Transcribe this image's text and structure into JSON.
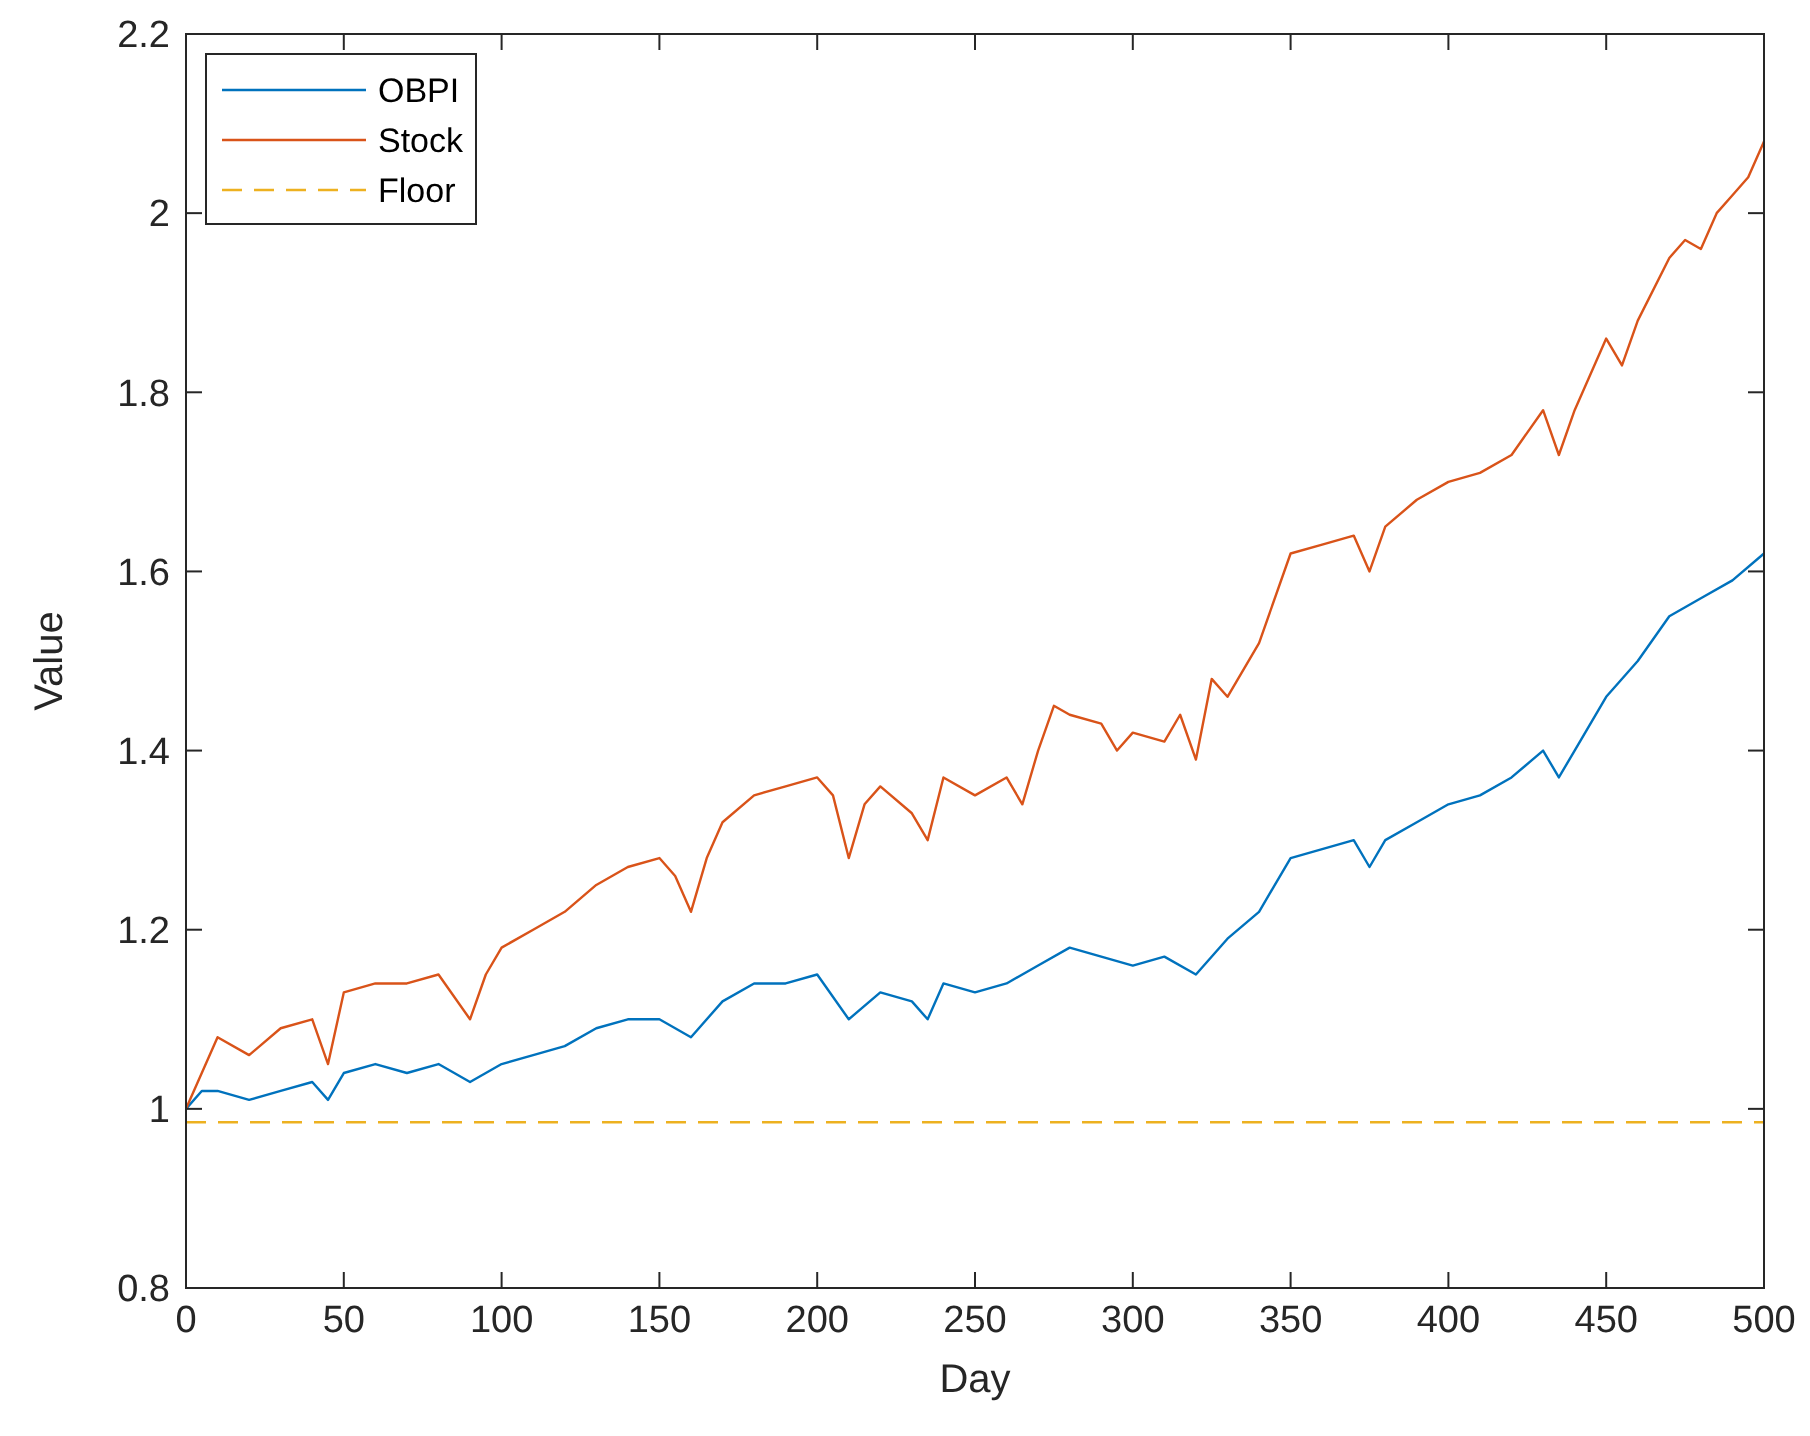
{
  "chart_data": {
    "type": "line",
    "xlabel": "Day",
    "ylabel": "Value",
    "xlim": [
      0,
      500
    ],
    "ylim": [
      0.8,
      2.2
    ],
    "xticks": [
      0,
      50,
      100,
      150,
      200,
      250,
      300,
      350,
      400,
      450,
      500
    ],
    "yticks": [
      0.8,
      1,
      1.2,
      1.4,
      1.6,
      1.8,
      2,
      2.2
    ],
    "grid": false,
    "legend": "top left",
    "marker": "none",
    "series": [
      {
        "name": "OBPI",
        "color": "#0072bd",
        "line_style": "solid",
        "x": [
          0,
          5,
          10,
          20,
          30,
          40,
          45,
          50,
          60,
          70,
          80,
          90,
          100,
          110,
          120,
          130,
          140,
          150,
          160,
          170,
          180,
          190,
          200,
          210,
          220,
          230,
          235,
          240,
          250,
          260,
          270,
          280,
          290,
          300,
          310,
          320,
          330,
          340,
          350,
          360,
          370,
          375,
          380,
          390,
          400,
          410,
          420,
          430,
          435,
          440,
          450,
          460,
          470,
          475,
          480,
          490,
          500
        ],
        "values": [
          1.0,
          1.02,
          1.02,
          1.01,
          1.02,
          1.03,
          1.01,
          1.04,
          1.05,
          1.04,
          1.05,
          1.03,
          1.05,
          1.06,
          1.07,
          1.09,
          1.1,
          1.1,
          1.08,
          1.12,
          1.14,
          1.14,
          1.15,
          1.1,
          1.13,
          1.12,
          1.1,
          1.14,
          1.13,
          1.14,
          1.16,
          1.18,
          1.17,
          1.16,
          1.17,
          1.15,
          1.19,
          1.22,
          1.28,
          1.29,
          1.3,
          1.27,
          1.3,
          1.32,
          1.34,
          1.35,
          1.37,
          1.4,
          1.37,
          1.4,
          1.46,
          1.5,
          1.55,
          1.56,
          1.57,
          1.59,
          1.62
        ]
      },
      {
        "name": "Stock",
        "color": "#d95319",
        "line_style": "solid",
        "x": [
          0,
          5,
          10,
          20,
          30,
          40,
          45,
          50,
          60,
          70,
          80,
          90,
          95,
          100,
          110,
          120,
          130,
          140,
          150,
          155,
          160,
          165,
          170,
          180,
          190,
          200,
          205,
          210,
          215,
          220,
          230,
          235,
          240,
          250,
          260,
          265,
          270,
          275,
          280,
          290,
          295,
          300,
          310,
          315,
          320,
          325,
          330,
          340,
          350,
          360,
          370,
          375,
          380,
          390,
          400,
          410,
          420,
          430,
          435,
          440,
          450,
          455,
          460,
          470,
          475,
          480,
          485,
          490,
          495,
          500
        ],
        "values": [
          1.0,
          1.04,
          1.08,
          1.06,
          1.09,
          1.1,
          1.05,
          1.13,
          1.14,
          1.14,
          1.15,
          1.1,
          1.15,
          1.18,
          1.2,
          1.22,
          1.25,
          1.27,
          1.28,
          1.26,
          1.22,
          1.28,
          1.32,
          1.35,
          1.36,
          1.37,
          1.35,
          1.28,
          1.34,
          1.36,
          1.33,
          1.3,
          1.37,
          1.35,
          1.37,
          1.34,
          1.4,
          1.45,
          1.44,
          1.43,
          1.4,
          1.42,
          1.41,
          1.44,
          1.39,
          1.48,
          1.46,
          1.52,
          1.62,
          1.63,
          1.64,
          1.6,
          1.65,
          1.68,
          1.7,
          1.71,
          1.73,
          1.78,
          1.73,
          1.78,
          1.86,
          1.83,
          1.88,
          1.95,
          1.97,
          1.96,
          2.0,
          2.02,
          2.04,
          2.08
        ]
      },
      {
        "name": "Floor",
        "color": "#edb120",
        "line_style": "dashed",
        "x": [
          0,
          500
        ],
        "values": [
          0.985,
          0.985
        ]
      }
    ]
  }
}
